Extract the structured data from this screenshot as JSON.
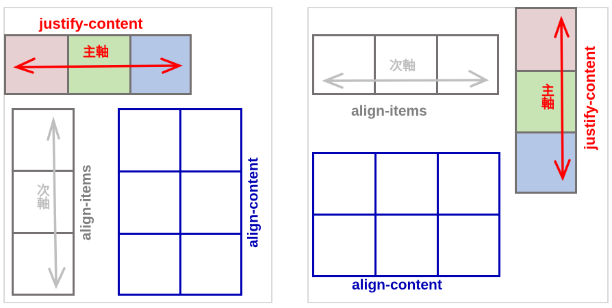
{
  "left": {
    "main_axis_label": "justify-content",
    "main_axis_text": "主軸",
    "cross_axis_label": "align-items",
    "cross_axis_text": "次軸",
    "content_label": "align-content"
  },
  "right": {
    "cross_axis_label": "align-items",
    "cross_axis_text": "次軸",
    "main_axis_label": "justify-content",
    "main_axis_text": "主軸",
    "content_label": "align-content"
  },
  "colors": {
    "red": "#ff0000",
    "gray_border": "#767171",
    "gray_text": "#7f7f7f",
    "light_gray_text": "#bfbfbf",
    "blue": "#0000b4",
    "pink_fill": "#e6d0d2",
    "green_fill": "#c9e4b4",
    "blue_fill": "#b4c7e7"
  }
}
